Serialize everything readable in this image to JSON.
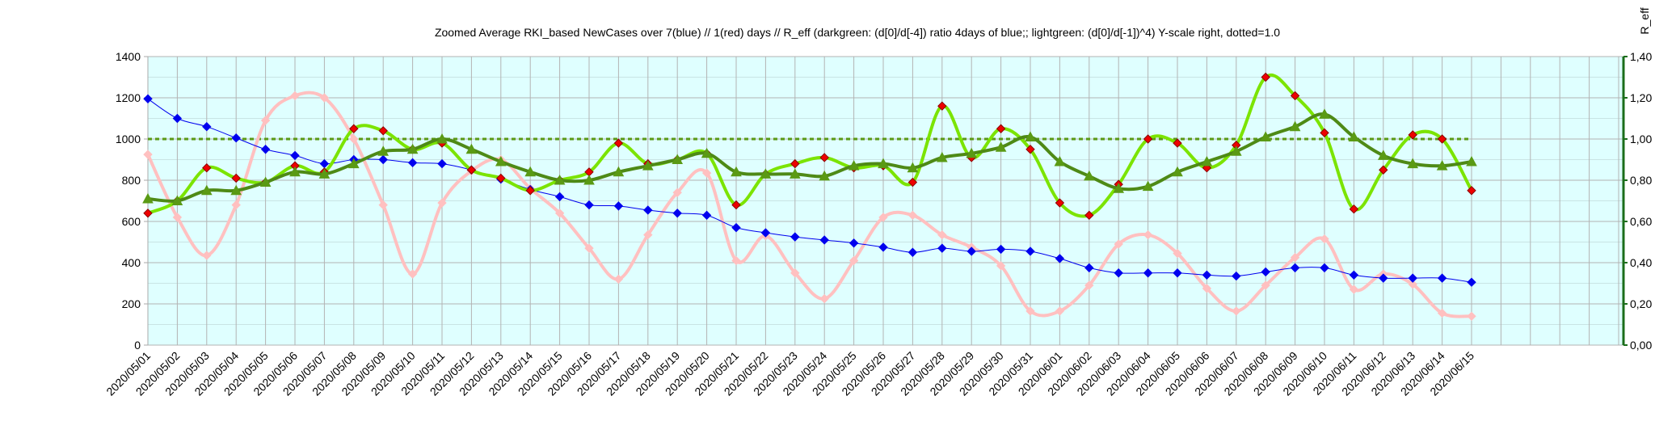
{
  "chart_data": {
    "type": "line",
    "title": "Zoomed Average RKI_based NewCases over 7(blue) // 1(red) days //  R_eff (darkgreen: (d[0]/d[-4]) ratio 4days of blue;; lightgreen: (d[0]/d[-1])^4) Y-scale right, dotted=1.0",
    "xlabel": "",
    "ylabel": "",
    "y2label": "R_eff",
    "ylim": [
      0,
      1400
    ],
    "y2lim": [
      0,
      1.4
    ],
    "yticks": [
      "0",
      "200",
      "400",
      "600",
      "800",
      "1000",
      "1200",
      "1400"
    ],
    "y2ticks": [
      "0,00",
      "0,20",
      "0,40",
      "0,60",
      "0,80",
      "1,00",
      "1,20",
      "1,40"
    ],
    "grid": true,
    "reference_line": 1.0,
    "categories": [
      "2020/05/01",
      "2020/05/02",
      "2020/05/03",
      "2020/05/04",
      "2020/05/05",
      "2020/05/06",
      "2020/05/07",
      "2020/05/08",
      "2020/05/09",
      "2020/05/10",
      "2020/05/11",
      "2020/05/12",
      "2020/05/13",
      "2020/05/14",
      "2020/05/15",
      "2020/05/16",
      "2020/05/17",
      "2020/05/18",
      "2020/05/19",
      "2020/05/20",
      "2020/05/21",
      "2020/05/22",
      "2020/05/23",
      "2020/05/24",
      "2020/05/25",
      "2020/05/26",
      "2020/05/27",
      "2020/05/28",
      "2020/05/29",
      "2020/05/30",
      "2020/05/31",
      "2020/06/01",
      "2020/06/02",
      "2020/06/03",
      "2020/06/04",
      "2020/06/05",
      "2020/06/06",
      "2020/06/07",
      "2020/06/08",
      "2020/06/09",
      "2020/06/10",
      "2020/06/11",
      "2020/06/12",
      "2020/06/13",
      "2020/06/14",
      "2020/06/15"
    ],
    "series": [
      {
        "key": "blue",
        "axis": "left",
        "color": "#0000ee",
        "marker": "diamond",
        "values": [
          1195,
          1100,
          1060,
          1005,
          950,
          920,
          880,
          900,
          900,
          885,
          880,
          850,
          805,
          755,
          720,
          680,
          675,
          655,
          640,
          630,
          570,
          545,
          525,
          510,
          495,
          475,
          450,
          470,
          455,
          465,
          455,
          420,
          375,
          350,
          350,
          350,
          340,
          335,
          355,
          375,
          375,
          340,
          325,
          325,
          325,
          305
        ]
      },
      {
        "key": "red",
        "axis": "left",
        "color": "#ffc0c0",
        "marker": "diamond",
        "values": [
          925,
          620,
          435,
          680,
          1090,
          1210,
          1200,
          1000,
          680,
          345,
          690,
          845,
          900,
          760,
          640,
          470,
          320,
          535,
          740,
          835,
          410,
          530,
          350,
          225,
          410,
          620,
          630,
          535,
          475,
          385,
          165,
          165,
          290,
          490,
          535,
          445,
          275,
          165,
          290,
          425,
          515,
          270,
          345,
          295,
          155,
          140
        ]
      },
      {
        "key": "darkgreen",
        "axis": "right",
        "color": "#4e8a16",
        "marker": "triangle",
        "values": [
          0.71,
          0.7,
          0.75,
          0.75,
          0.79,
          0.84,
          0.83,
          0.88,
          0.94,
          0.95,
          1.0,
          0.95,
          0.89,
          0.84,
          0.8,
          0.8,
          0.84,
          0.87,
          0.9,
          0.93,
          0.84,
          0.83,
          0.83,
          0.82,
          0.87,
          0.88,
          0.86,
          0.91,
          0.93,
          0.96,
          1.01,
          0.89,
          0.82,
          0.76,
          0.77,
          0.84,
          0.89,
          0.94,
          1.01,
          1.06,
          1.12,
          1.01,
          0.92,
          0.88,
          0.87,
          0.89
        ]
      },
      {
        "key": "lightgreen",
        "axis": "right",
        "color": "#7be400",
        "marker": "diamond-red",
        "values": [
          0.64,
          0.7,
          0.86,
          0.81,
          0.79,
          0.87,
          0.84,
          1.05,
          1.04,
          0.95,
          0.98,
          0.85,
          0.81,
          0.75,
          0.8,
          0.84,
          0.98,
          0.88,
          0.9,
          0.93,
          0.68,
          0.83,
          0.88,
          0.91,
          0.86,
          0.87,
          0.79,
          1.16,
          0.91,
          1.05,
          0.95,
          0.69,
          0.63,
          0.78,
          1.0,
          0.98,
          0.86,
          0.97,
          1.3,
          1.21,
          1.03,
          0.66,
          0.85,
          1.02,
          1.0,
          0.75
        ]
      }
    ]
  }
}
